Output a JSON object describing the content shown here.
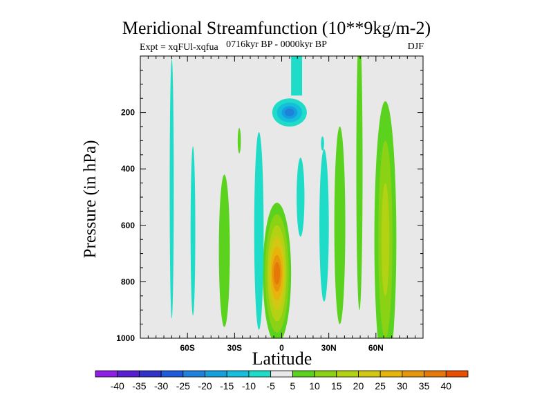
{
  "chart_data": {
    "type": "contour",
    "title": "Meridional Streamfunction (10**9kg/m-2)",
    "left_subtitle": "Expt = xqFUl-xqfua",
    "center_subtitle": "0716kyr BP - 0000kyr BP",
    "right_subtitle": "DJF",
    "xlabel": "Latitude",
    "ylabel": "Pressure (in hPa)",
    "xlim": [
      -90,
      90
    ],
    "ylim": [
      1000,
      0
    ],
    "xticks": [
      {
        "value": -60,
        "label": "60S"
      },
      {
        "value": -30,
        "label": "30S"
      },
      {
        "value": 0,
        "label": "0"
      },
      {
        "value": 30,
        "label": "30N"
      },
      {
        "value": 60,
        "label": "60N"
      }
    ],
    "yticks": [
      {
        "value": 200,
        "label": "200"
      },
      {
        "value": 400,
        "label": "400"
      },
      {
        "value": 600,
        "label": "600"
      },
      {
        "value": 800,
        "label": "800"
      },
      {
        "value": 1000,
        "label": "1000"
      }
    ],
    "colorbar": {
      "levels": [
        -40,
        -35,
        -30,
        -25,
        -20,
        -15,
        -10,
        -5,
        5,
        10,
        15,
        20,
        25,
        30,
        35,
        40
      ],
      "colors": [
        "#8f1ee6",
        "#5a1ed2",
        "#3232c8",
        "#1e5adc",
        "#1e82dc",
        "#14a0dc",
        "#14bedc",
        "#1edcc8",
        "#e8e8e8",
        "#5ad21e",
        "#8cd214",
        "#b4d214",
        "#d2c814",
        "#e6b40a",
        "#e6960a",
        "#e6780a",
        "#e65000"
      ]
    },
    "background_color": "#e8e8e8",
    "features": [
      {
        "name": "upper-negative-cell",
        "kind": "negative",
        "cx": 5,
        "cy": 200,
        "levels": [
          -5,
          -10,
          -15,
          -20
        ],
        "widths": [
          11,
          8,
          5,
          3
        ],
        "heights": [
          100,
          70,
          45,
          28
        ],
        "extra": [
          {
            "x": [
              6,
              13
            ],
            "p": [
              0,
              140
            ]
          }
        ]
      },
      {
        "name": "equatorial-positive-cell",
        "kind": "positive",
        "cx": -3,
        "cy": 770,
        "levels": [
          5,
          10,
          15,
          20,
          25,
          30,
          35
        ],
        "widths": [
          9,
          7.5,
          6,
          5,
          4,
          3,
          2
        ],
        "heights": [
          500,
          420,
          340,
          260,
          190,
          130,
          80
        ]
      },
      {
        "name": "n60-positive-column",
        "kind": "positive",
        "cx": 66,
        "cy": 650,
        "levels": [
          5,
          10,
          15
        ],
        "widths": [
          7,
          4.5,
          2.5
        ],
        "heights": [
          980,
          700,
          400
        ]
      },
      {
        "name": "n50-positive-column",
        "kind": "positive",
        "cx": 49.5,
        "cy": 400,
        "levels": [
          5
        ],
        "widths": [
          2
        ],
        "heights": [
          1000
        ]
      },
      {
        "name": "s40-positive-column",
        "kind": "positive",
        "cx": -36.5,
        "cy": 690,
        "levels": [
          5
        ],
        "widths": [
          3.5
        ],
        "heights": [
          540
        ]
      },
      {
        "name": "s25-positive-blob",
        "kind": "positive",
        "cx": -27,
        "cy": 300,
        "levels": [
          5
        ],
        "widths": [
          1
        ],
        "heights": [
          90
        ]
      },
      {
        "name": "n35-positive-blob",
        "kind": "positive",
        "cx": 37,
        "cy": 600,
        "levels": [
          5
        ],
        "widths": [
          3.5
        ],
        "heights": [
          700
        ]
      },
      {
        "name": "s70-negative-column",
        "kind": "negative",
        "cx": -70,
        "cy": 470,
        "levels": [
          -5
        ],
        "widths": [
          1.3
        ],
        "heights": [
          920
        ]
      },
      {
        "name": "s55-negative-column",
        "kind": "negative",
        "cx": -56.5,
        "cy": 620,
        "levels": [
          -5
        ],
        "widths": [
          1.5
        ],
        "heights": [
          600
        ]
      },
      {
        "name": "s15-negative-column",
        "kind": "negative",
        "cx": -14.5,
        "cy": 620,
        "levels": [
          -5
        ],
        "widths": [
          3
        ],
        "heights": [
          700
        ]
      },
      {
        "name": "n13-negative-blob",
        "kind": "negative",
        "cx": 12,
        "cy": 500,
        "levels": [
          -5
        ],
        "widths": [
          2.5
        ],
        "heights": [
          280
        ]
      },
      {
        "name": "n27-negative-column",
        "kind": "negative",
        "cx": 27,
        "cy": 600,
        "levels": [
          -5
        ],
        "widths": [
          3
        ],
        "heights": [
          540
        ]
      },
      {
        "name": "n26-negative-blob",
        "kind": "negative",
        "cx": 26,
        "cy": 310,
        "levels": [
          -5
        ],
        "widths": [
          1
        ],
        "heights": [
          50
        ]
      }
    ]
  }
}
